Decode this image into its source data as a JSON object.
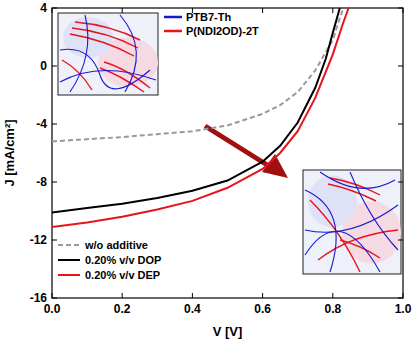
{
  "chart_data": {
    "type": "line",
    "xlabel": "V [V]",
    "ylabel": "J [mA/cm²]",
    "xlim": [
      0,
      1.0
    ],
    "ylim": [
      -16,
      4
    ],
    "xticks": [
      {
        "value": 0,
        "label": "0.0"
      },
      {
        "value": 0.2,
        "label": "0.2"
      },
      {
        "value": 0.4,
        "label": "0.4"
      },
      {
        "value": 0.6,
        "label": "0.6"
      },
      {
        "value": 0.8,
        "label": "0.8"
      },
      {
        "value": 1.0,
        "label": "1.0"
      }
    ],
    "yticks": [
      -16,
      -12,
      -8,
      -4,
      0,
      4
    ],
    "legend": "lower left",
    "series": [
      {
        "name": "w/o additive",
        "color": "#999999",
        "line_style": "dashed",
        "x": [
          0,
          0.1,
          0.2,
          0.3,
          0.4,
          0.5,
          0.6,
          0.65,
          0.7,
          0.75,
          0.8,
          0.82,
          0.83
        ],
        "values": [
          -5.2,
          -5.05,
          -4.9,
          -4.7,
          -4.5,
          -4.1,
          -3.3,
          -2.7,
          -1.8,
          -0.3,
          1.8,
          3.3,
          4
        ]
      },
      {
        "name": "0.20% v/v DOP",
        "color": "#000000",
        "line_style": "solid",
        "x": [
          0,
          0.1,
          0.2,
          0.3,
          0.4,
          0.5,
          0.6,
          0.65,
          0.7,
          0.75,
          0.78,
          0.8,
          0.82
        ],
        "values": [
          -10.1,
          -9.8,
          -9.5,
          -9.1,
          -8.6,
          -7.9,
          -6.6,
          -5.5,
          -3.9,
          -1.5,
          0.5,
          2.3,
          4
        ]
      },
      {
        "name": "0.20% v/v DEP",
        "color": "#e8141c",
        "line_style": "solid",
        "x": [
          0,
          0.1,
          0.2,
          0.3,
          0.4,
          0.5,
          0.6,
          0.65,
          0.7,
          0.75,
          0.8,
          0.83,
          0.845
        ],
        "values": [
          -11.1,
          -10.8,
          -10.4,
          -9.9,
          -9.3,
          -8.4,
          -7.1,
          -6.0,
          -4.5,
          -2.2,
          0.8,
          3,
          4
        ]
      }
    ],
    "annotations": [
      {
        "text": "PTB7-Th",
        "color": "#1a1acc"
      },
      {
        "text": "P(NDI2OD)-2T",
        "color": "#e8141c"
      }
    ]
  }
}
